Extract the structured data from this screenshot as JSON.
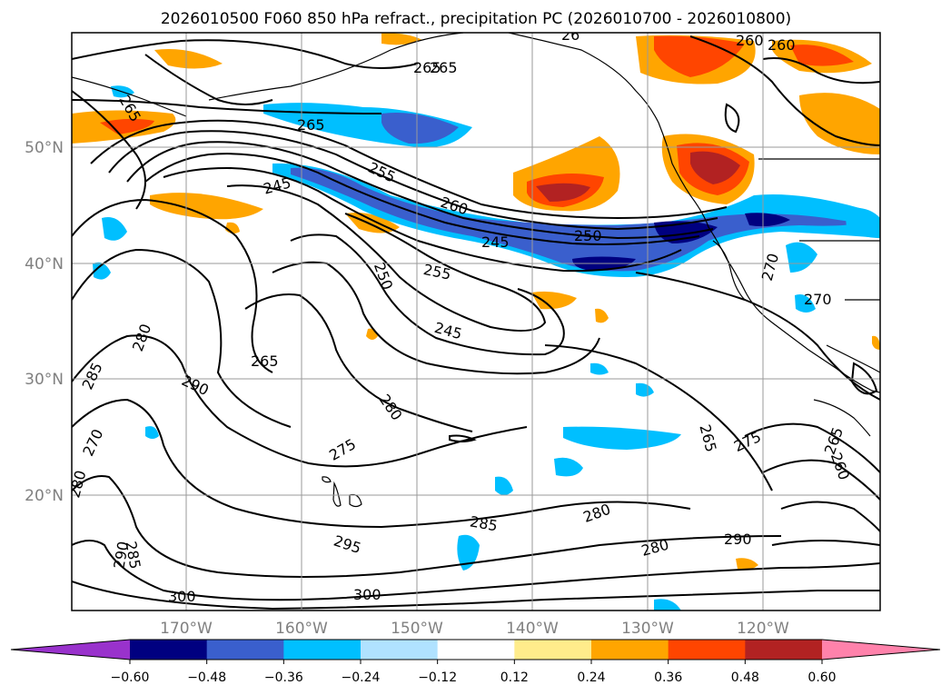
{
  "title": "2026010500 F060 850 hPa refract., precipitation PC (2026010700 - 2026010800)",
  "lat_labels": [
    "50°N",
    "40°N",
    "30°N",
    "20°N"
  ],
  "lon_labels": [
    "170°W",
    "160°W",
    "150°W",
    "140°W",
    "130°W",
    "120°W"
  ],
  "colorbar": {
    "ticks": [
      "−0.60",
      "−0.48",
      "−0.36",
      "−0.24",
      "−0.12",
      "0.12",
      "0.24",
      "0.36",
      "0.48",
      "0.60"
    ],
    "colors": [
      "#9932cc",
      "#000080",
      "#3a5fcd",
      "#00bfff",
      "#b0e2ff",
      "#ffffff",
      "#ffec8b",
      "#ffa500",
      "#ff4500",
      "#b22222",
      "#ff82ab"
    ]
  },
  "contour_labels": [
    "265",
    "265",
    "265",
    "255",
    "260",
    "245",
    "245",
    "250",
    "255",
    "250",
    "245",
    "260",
    "270",
    "270",
    "280",
    "290",
    "265",
    "275",
    "280",
    "265",
    "275",
    "285",
    "280",
    "270",
    "280",
    "285",
    "280",
    "290",
    "295",
    "300",
    "300",
    "290",
    "285",
    "260",
    "265",
    "260",
    "265",
    "26"
  ]
}
